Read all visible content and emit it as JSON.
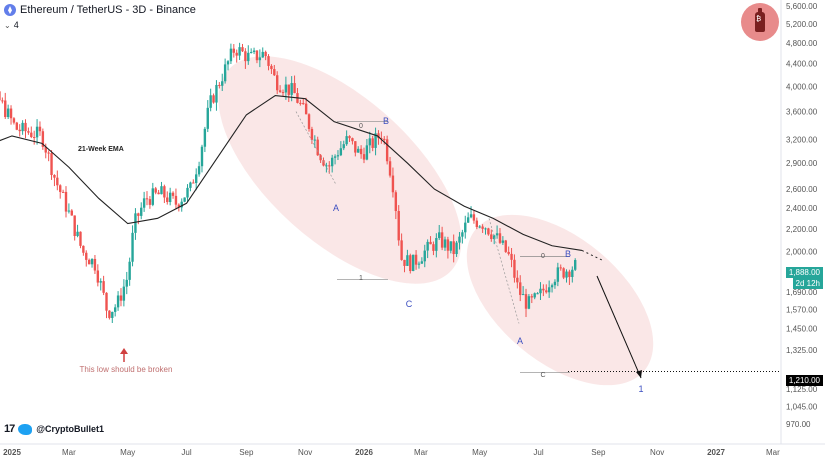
{
  "header": {
    "title": "Ethereum / TetherUS - 3D - Binance",
    "indicator_count": "4"
  },
  "branding": {
    "handle": "@CryptoBullet1",
    "tv_mark": "17"
  },
  "price_tags": {
    "current_price": "1,888.00",
    "countdown": "2d 12h",
    "target_price": "1,210.00",
    "current_color": "#26a69a",
    "target_color": "#000000"
  },
  "chart_data": {
    "type": "candlestick",
    "symbol": "ETHUSDT",
    "timeframe": "3D",
    "y_scale": "log",
    "ylim": [
      900,
      5700
    ],
    "y_ticks": [
      "5,600.00",
      "5,200.00",
      "4,800.00",
      "4,400.00",
      "4,000.00",
      "3,600.00",
      "3,200.00",
      "2,900.00",
      "2,600.00",
      "2,400.00",
      "2,200.00",
      "2,000.00",
      "1,690.00",
      "1,570.00",
      "1,450.00",
      "1,325.00",
      "1,125.00",
      "1,045.00",
      "970.00"
    ],
    "y_tick_values": [
      5600,
      5200,
      4800,
      4400,
      4000,
      3600,
      3200,
      2900,
      2600,
      2400,
      2200,
      2000,
      1690,
      1570,
      1450,
      1325,
      1125,
      1045,
      970
    ],
    "x_ticks": [
      "2025",
      "Mar",
      "May",
      "Jul",
      "Sep",
      "Nov",
      "2026",
      "Mar",
      "May",
      "Jul",
      "Sep",
      "Nov",
      "2027",
      "Mar"
    ],
    "price_path": [
      [
        "2024-11-10",
        3100
      ],
      [
        "2024-11-25",
        3450
      ],
      [
        "2024-12-10",
        3850
      ],
      [
        "2024-12-20",
        3750
      ],
      [
        "2025-01-05",
        3350
      ],
      [
        "2025-01-20",
        3300
      ],
      [
        "2025-02-01",
        3250
      ],
      [
        "2025-02-15",
        2700
      ],
      [
        "2025-03-01",
        2350
      ],
      [
        "2025-03-15",
        2000
      ],
      [
        "2025-03-28",
        1900
      ],
      [
        "2025-04-10",
        1550
      ],
      [
        "2025-04-20",
        1600
      ],
      [
        "2025-05-01",
        1800
      ],
      [
        "2025-05-08",
        2250
      ],
      [
        "2025-05-20",
        2500
      ],
      [
        "2025-06-05",
        2550
      ],
      [
        "2025-06-20",
        2450
      ],
      [
        "2025-07-05",
        2600
      ],
      [
        "2025-07-15",
        3000
      ],
      [
        "2025-07-25",
        3700
      ],
      [
        "2025-08-10",
        4300
      ],
      [
        "2025-08-20",
        4700
      ],
      [
        "2025-09-05",
        4500
      ],
      [
        "2025-09-20",
        4600
      ],
      [
        "2025-10-01",
        4100
      ],
      [
        "2025-10-20",
        3900
      ],
      [
        "2025-11-01",
        3550
      ],
      [
        "2025-11-15",
        3050
      ],
      [
        "2025-11-25",
        2850
      ],
      [
        "2025-12-05",
        3050
      ],
      [
        "2025-12-15",
        3200
      ],
      [
        "2025-12-28",
        3000
      ],
      [
        "2026-01-10",
        3150
      ],
      [
        "2026-01-20",
        3300
      ],
      [
        "2026-02-01",
        2600
      ],
      [
        "2026-02-08",
        1950
      ],
      [
        "2026-02-20",
        1900
      ],
      [
        "2026-03-05",
        2000
      ],
      [
        "2026-03-20",
        2100
      ],
      [
        "2026-04-05",
        2000
      ],
      [
        "2026-04-20",
        2300
      ],
      [
        "2026-05-05",
        2250
      ],
      [
        "2026-05-20",
        2100
      ],
      [
        "2026-06-01",
        1950
      ],
      [
        "2026-06-10",
        1700
      ],
      [
        "2026-06-20",
        1600
      ],
      [
        "2026-07-01",
        1650
      ],
      [
        "2026-07-15",
        1800
      ],
      [
        "2026-08-01",
        1860
      ],
      [
        "2026-08-10",
        1888
      ]
    ],
    "ema": {
      "label": "21-Week EMA",
      "values": [
        [
          "2024-11-10",
          3000
        ],
        [
          "2025-01-01",
          3250
        ],
        [
          "2025-02-01",
          3150
        ],
        [
          "2025-03-01",
          2850
        ],
        [
          "2025-04-01",
          2500
        ],
        [
          "2025-05-01",
          2250
        ],
        [
          "2025-06-01",
          2300
        ],
        [
          "2025-07-01",
          2450
        ],
        [
          "2025-08-01",
          2950
        ],
        [
          "2025-09-01",
          3550
        ],
        [
          "2025-10-01",
          3850
        ],
        [
          "2025-11-01",
          3800
        ],
        [
          "2025-12-01",
          3450
        ],
        [
          "2026-01-15",
          3250
        ],
        [
          "2026-02-15",
          2900
        ],
        [
          "2026-03-15",
          2600
        ],
        [
          "2026-04-15",
          2420
        ],
        [
          "2026-05-15",
          2300
        ],
        [
          "2026-06-15",
          2150
        ],
        [
          "2026-07-15",
          2050
        ],
        [
          "2026-08-15",
          2010
        ]
      ],
      "projection": [
        [
          "2026-08-15",
          2010
        ],
        [
          "2026-09-05",
          1930
        ]
      ]
    },
    "annotations": [
      {
        "text": "A",
        "date": "2025-11-20",
        "price": 2700
      },
      {
        "text": "B",
        "date": "2026-01-10",
        "price": 3550
      },
      {
        "text": "C",
        "date": "2026-02-15",
        "price": 1720
      },
      {
        "text": "0",
        "date": "2025-12-25",
        "price": 3450
      },
      {
        "text": "1",
        "date": "2026-01-10",
        "price": 1900
      },
      {
        "text": "A",
        "date": "2026-06-05",
        "price": 1430
      },
      {
        "text": "B",
        "date": "2026-07-25",
        "price": 1990
      },
      {
        "text": "0",
        "date": "2026-07-01",
        "price": 2000
      },
      {
        "text": "C",
        "date": "2026-09-20",
        "price": 1170
      },
      {
        "text": "1",
        "date": "2026-07-01",
        "price": 1240
      },
      {
        "text": "This low should be broken",
        "date": "2025-04-15",
        "price": 1330
      }
    ],
    "projection_arrow": [
      [
        "2026-08-20",
        1880
      ],
      [
        "2026-09-25",
        1210
      ]
    ]
  }
}
